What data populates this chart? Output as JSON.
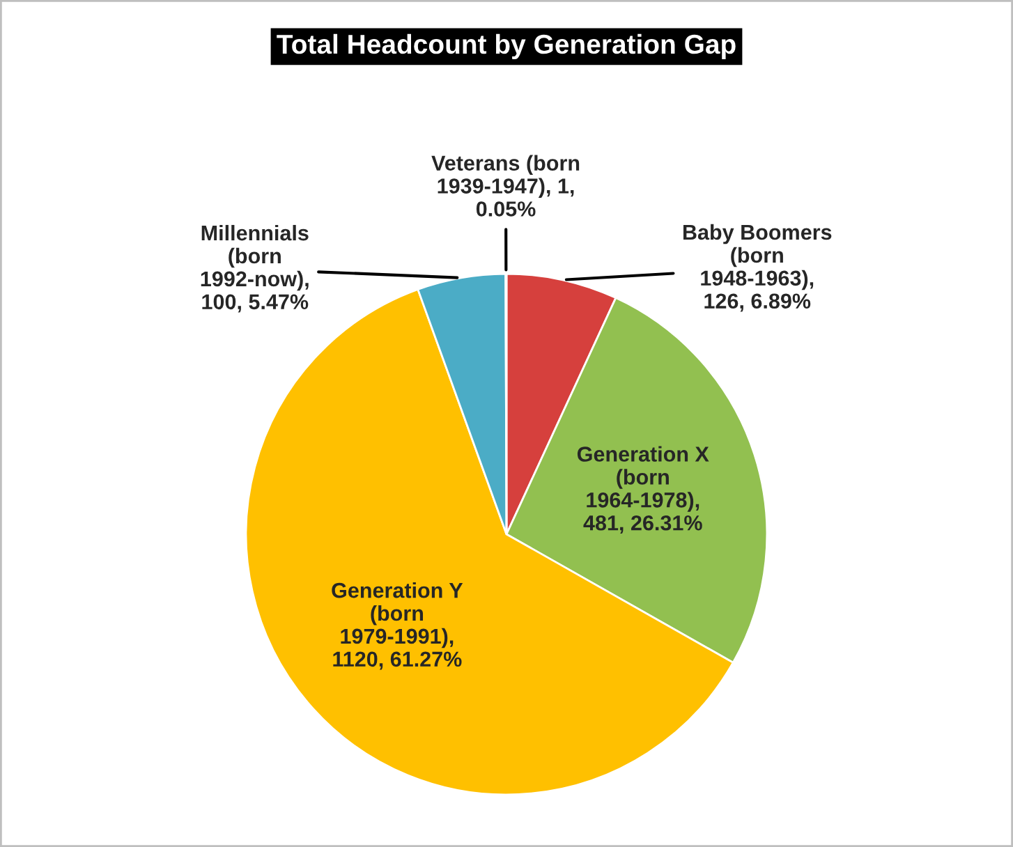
{
  "chart_data": {
    "type": "pie",
    "title": "Total Headcount by Generation Gap",
    "categories": [
      "Baby Boomers (born 1948-1963), 126, 6.89%",
      "Generation X (born 1964-1978), 481, 26.31%",
      "Generation Y (born 1979-1991), 1120, 61.27%",
      "Millennials (born 1992-now), 100, 5.47%",
      "Veterans (born 1939-1947), 1, 0.05%"
    ],
    "values": [
      126,
      481,
      1120,
      100,
      1
    ],
    "colors": [
      "#d6403d",
      "#92c050",
      "#ffc000",
      "#4bacc6",
      "#8064a2"
    ],
    "legend": false
  }
}
